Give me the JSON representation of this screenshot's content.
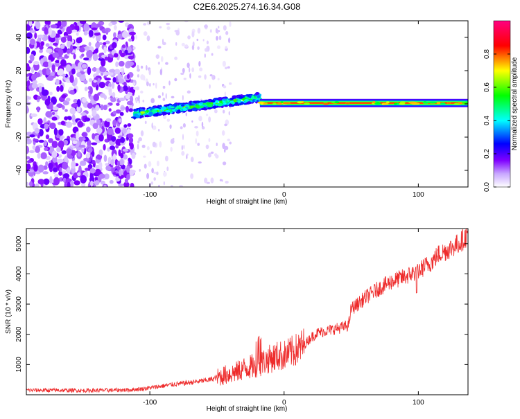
{
  "title": "C2E6.2025.274.16.34.G08",
  "colors": {
    "snr_line": "#ee2c2c",
    "axis": "#000000"
  },
  "chart_data": [
    {
      "type": "heatmap",
      "title": "C2E6.2025.274.16.34.G08",
      "xlabel": "Height of straight line (km)",
      "ylabel": "Frequency (Hz)",
      "xlim": [
        -192,
        137
      ],
      "ylim": [
        -50,
        50
      ],
      "x_ticks": [
        -100,
        0,
        100
      ],
      "x_tick_labels": [
        "-100",
        "0",
        "100"
      ],
      "y_ticks": [
        -40,
        -20,
        0,
        20,
        40
      ],
      "y_tick_labels": [
        "-40",
        "-20",
        "0",
        "20",
        "40"
      ],
      "colorbar": {
        "label": "Normalized spectral amplitude",
        "range": [
          0,
          1
        ],
        "ticks": [
          0.0,
          0.2,
          0.4,
          0.6,
          0.8
        ],
        "tick_labels": [
          "0.0",
          "0.2",
          "0.4",
          "0.6",
          "0.8"
        ],
        "stops": [
          "#ffffff",
          "#8000ff",
          "#0000ff",
          "#00ffff",
          "#00ff00",
          "#ffff00",
          "#ff0000",
          "#ff0080"
        ]
      },
      "features": [
        {
          "region": "scattered noise",
          "x_range": [
            -192,
            -112
          ],
          "freq_range": [
            -50,
            50
          ],
          "amplitude": 0.12
        },
        {
          "region": "sparse noise",
          "x_range": [
            -112,
            -40
          ],
          "freq_range": [
            -50,
            50
          ],
          "amplitude": 0.05
        },
        {
          "region": "ascending tone",
          "x_range": [
            -112,
            -18
          ],
          "freq_range": [
            -6,
            8
          ],
          "amplitude": 0.35
        },
        {
          "region": "stable tone",
          "x_range": [
            -18,
            137
          ],
          "freq_range": [
            0,
            1
          ],
          "amplitude": 0.85
        }
      ]
    },
    {
      "type": "line",
      "xlabel": "Height of straight line (km)",
      "ylabel": "SNR (10 * v/v)",
      "xlim": [
        -192,
        137
      ],
      "ylim": [
        0,
        5500
      ],
      "x_ticks": [
        -100,
        0,
        100
      ],
      "x_tick_labels": [
        "-100",
        "0",
        "100"
      ],
      "y_ticks": [
        1000,
        2000,
        3000,
        4000,
        5000
      ],
      "y_tick_labels": [
        "1000",
        "2000",
        "3000",
        "4000",
        "5000"
      ],
      "series": [
        {
          "name": "SNR",
          "x": [
            -192,
            -170,
            -150,
            -130,
            -115,
            -105,
            -95,
            -85,
            -75,
            -65,
            -55,
            -45,
            -35,
            -30,
            -25,
            -20,
            -15,
            -10,
            -5,
            0,
            5,
            10,
            15,
            20,
            25,
            30,
            35,
            40,
            45,
            48,
            50,
            55,
            60,
            70,
            80,
            90,
            100,
            110,
            115,
            120,
            130,
            137
          ],
          "y": [
            150,
            150,
            140,
            150,
            160,
            200,
            260,
            330,
            380,
            430,
            500,
            640,
            760,
            870,
            920,
            1000,
            1100,
            1200,
            1280,
            1300,
            1400,
            1500,
            1650,
            1900,
            2050,
            2100,
            2150,
            2200,
            2250,
            2300,
            2850,
            3000,
            3200,
            3500,
            3750,
            3900,
            4100,
            4400,
            4650,
            4750,
            5000,
            5300
          ]
        }
      ]
    }
  ]
}
